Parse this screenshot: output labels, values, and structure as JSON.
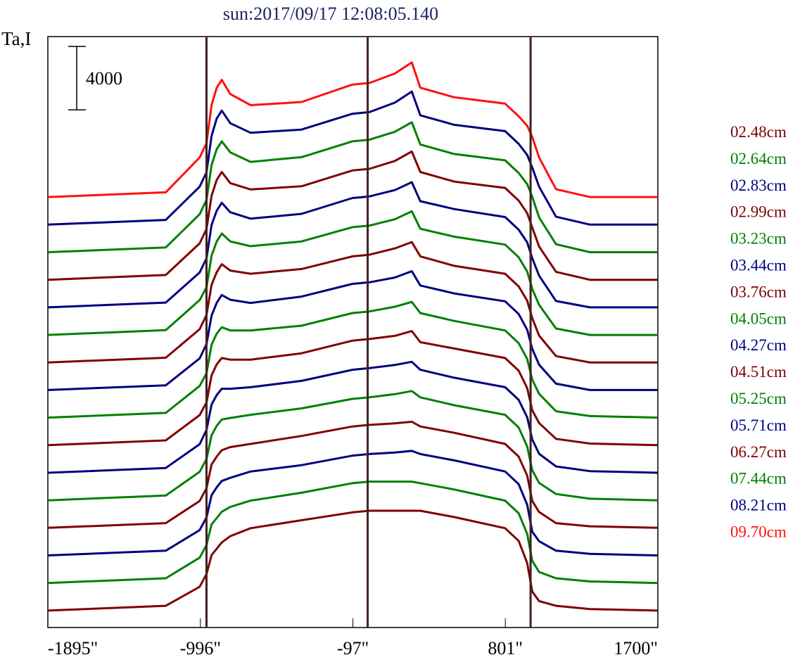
{
  "chart_data": {
    "type": "line",
    "title": "sun:2017/09/17 12:08:05.140",
    "ylabel": "Ta,I",
    "xlabel": "",
    "xlim": [
      -1895,
      1700
    ],
    "ylim": [
      -1070,
      36230
    ],
    "x_ticks": [
      -1895,
      -996,
      -97,
      801,
      1700
    ],
    "x_tick_labels": [
      "-1895\"",
      "-996\"",
      "-97\"",
      "801\"",
      "1700\""
    ],
    "scale_bar": {
      "value": 4000,
      "label": "4000"
    },
    "markers_x": [
      -960,
      -10,
      950
    ],
    "grid": false,
    "legend_position": "right",
    "x": [
      -1895,
      -1200,
      -1000,
      -960,
      -930,
      -900,
      -870,
      -820,
      -700,
      -400,
      -100,
      0,
      150,
      250,
      300,
      500,
      800,
      880,
      930,
      960,
      1000,
      1100,
      1300,
      1700
    ],
    "series": [
      {
        "name": "09.70cm",
        "color": "#ff1010",
        "offset": 26100,
        "values": [
          0,
          300,
          2500,
          3400,
          5800,
          6900,
          7400,
          6500,
          5800,
          6000,
          7100,
          7200,
          7800,
          8500,
          6900,
          6300,
          5900,
          5100,
          4500,
          3800,
          2500,
          500,
          0,
          0
        ]
      },
      {
        "name": "08.21cm",
        "color": "#000080",
        "offset": 24360,
        "values": [
          0,
          300,
          2400,
          3300,
          5600,
          6700,
          7200,
          6400,
          5800,
          6000,
          7000,
          7100,
          7700,
          8400,
          6900,
          6300,
          5900,
          5100,
          4400,
          3600,
          2400,
          500,
          0,
          0
        ]
      },
      {
        "name": "07.44cm",
        "color": "#008000",
        "offset": 22620,
        "values": [
          0,
          300,
          2400,
          3300,
          5500,
          6500,
          7000,
          6300,
          5700,
          6000,
          7000,
          7100,
          7600,
          8200,
          6800,
          6200,
          5800,
          5000,
          4300,
          3500,
          2200,
          500,
          0,
          0
        ]
      },
      {
        "name": "06.27cm",
        "color": "#800000",
        "offset": 20880,
        "values": [
          0,
          300,
          2300,
          3200,
          5300,
          6300,
          6800,
          6100,
          5700,
          5900,
          6900,
          7000,
          7500,
          8100,
          6800,
          6200,
          5800,
          5000,
          4200,
          3300,
          2100,
          500,
          0,
          0
        ]
      },
      {
        "name": "05.71cm",
        "color": "#000080",
        "offset": 19140,
        "values": [
          0,
          300,
          2200,
          3100,
          5200,
          6100,
          6600,
          6000,
          5600,
          5900,
          6900,
          7000,
          7400,
          7900,
          6700,
          6200,
          5700,
          4900,
          4100,
          3100,
          2000,
          400,
          0,
          0
        ]
      },
      {
        "name": "05.25cm",
        "color": "#008000",
        "offset": 17400,
        "values": [
          0,
          300,
          2200,
          3000,
          5000,
          5900,
          6400,
          5900,
          5600,
          5900,
          6800,
          6900,
          7300,
          7800,
          6700,
          6200,
          5700,
          4900,
          4000,
          2900,
          1900,
          400,
          0,
          0
        ]
      },
      {
        "name": "04.51cm",
        "color": "#800000",
        "offset": 15660,
        "values": [
          0,
          300,
          2100,
          3000,
          4900,
          5700,
          6200,
          5800,
          5600,
          5900,
          6700,
          6800,
          7200,
          7600,
          6700,
          6100,
          5600,
          4800,
          3900,
          2800,
          1700,
          400,
          0,
          0
        ]
      },
      {
        "name": "04.27cm",
        "color": "#000080",
        "offset": 13920,
        "values": [
          0,
          300,
          2000,
          2900,
          4700,
          5500,
          6000,
          5700,
          5500,
          5900,
          6700,
          6800,
          7100,
          7500,
          6600,
          6100,
          5600,
          4800,
          3800,
          2600,
          1600,
          400,
          0,
          0
        ]
      },
      {
        "name": "04.05cm",
        "color": "#008000",
        "offset": 12180,
        "values": [
          0,
          300,
          2000,
          2800,
          4600,
          5300,
          5700,
          5500,
          5500,
          5800,
          6600,
          6700,
          7000,
          7300,
          6600,
          6100,
          5500,
          4700,
          3700,
          2400,
          1500,
          400,
          100,
          0
        ]
      },
      {
        "name": "03.76cm",
        "color": "#800000",
        "offset": 10440,
        "values": [
          0,
          300,
          1900,
          2700,
          4400,
          5100,
          5500,
          5400,
          5400,
          5800,
          6600,
          6700,
          6900,
          7200,
          6500,
          6100,
          5500,
          4700,
          3600,
          2200,
          1400,
          400,
          100,
          0
        ]
      },
      {
        "name": "03.44cm",
        "color": "#000080",
        "offset": 8700,
        "values": [
          0,
          300,
          1800,
          2700,
          4300,
          4900,
          5300,
          5300,
          5400,
          5800,
          6500,
          6600,
          6800,
          7000,
          6500,
          6000,
          5400,
          4600,
          3500,
          2100,
          1200,
          400,
          100,
          0
        ]
      },
      {
        "name": "03.23cm",
        "color": "#008000",
        "offset": 6960,
        "values": [
          0,
          300,
          1800,
          2600,
          4100,
          4700,
          5100,
          5200,
          5400,
          5800,
          6400,
          6500,
          6700,
          6900,
          6500,
          6000,
          5400,
          4600,
          3400,
          1900,
          1100,
          400,
          100,
          0
        ]
      },
      {
        "name": "02.99cm",
        "color": "#800000",
        "offset": 5220,
        "values": [
          0,
          300,
          1700,
          2500,
          4000,
          4500,
          4900,
          5100,
          5300,
          5800,
          6400,
          6500,
          6600,
          6700,
          6400,
          6000,
          5300,
          4500,
          3300,
          1700,
          1000,
          300,
          100,
          0
        ]
      },
      {
        "name": "02.83cm",
        "color": "#000080",
        "offset": 3480,
        "values": [
          0,
          300,
          1600,
          2400,
          3800,
          4300,
          4700,
          4900,
          5300,
          5700,
          6300,
          6400,
          6500,
          6600,
          6400,
          6000,
          5300,
          4500,
          3200,
          1500,
          900,
          300,
          100,
          0
        ]
      },
      {
        "name": "02.64cm",
        "color": "#008000",
        "offset": 1740,
        "values": [
          0,
          300,
          1600,
          2400,
          3700,
          4100,
          4500,
          4800,
          5200,
          5700,
          6300,
          6400,
          6400,
          6400,
          6300,
          5900,
          5200,
          4400,
          3100,
          1400,
          700,
          300,
          100,
          0
        ]
      },
      {
        "name": "02.48cm",
        "color": "#800000",
        "offset": 0,
        "values": [
          0,
          300,
          1500,
          2300,
          3500,
          3900,
          4300,
          4700,
          5200,
          5700,
          6200,
          6300,
          6300,
          6300,
          6300,
          5900,
          5200,
          4400,
          3000,
          1200,
          600,
          300,
          100,
          0
        ]
      }
    ],
    "colors": {
      "title": "#1c2460",
      "marker": "#402020",
      "axis": "#000000"
    }
  }
}
